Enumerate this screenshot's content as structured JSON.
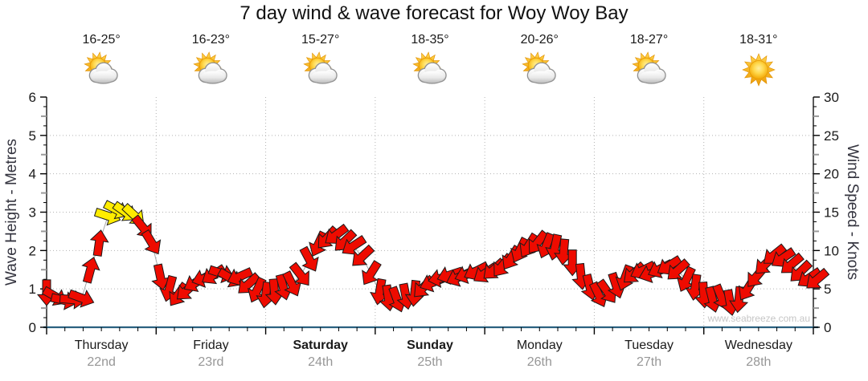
{
  "title": "7 day wind & wave forecast for Woy Woy Bay",
  "watermark": "www.seabreeze.com.au",
  "axes": {
    "left_label": "Wave Height - Metres",
    "right_label": "Wind Speed - Knots"
  },
  "days": [
    {
      "name": "Thursday",
      "date": "22nd",
      "temp": "16-25°",
      "icon": "partly-cloudy",
      "bold": false
    },
    {
      "name": "Friday",
      "date": "23rd",
      "temp": "16-23°",
      "icon": "partly-cloudy",
      "bold": false
    },
    {
      "name": "Saturday",
      "date": "24th",
      "temp": "15-27°",
      "icon": "partly-cloudy",
      "bold": true
    },
    {
      "name": "Sunday",
      "date": "25th",
      "temp": "18-35°",
      "icon": "partly-cloudy",
      "bold": true
    },
    {
      "name": "Monday",
      "date": "26th",
      "temp": "20-26°",
      "icon": "partly-cloudy",
      "bold": false
    },
    {
      "name": "Tuesday",
      "date": "27th",
      "temp": "18-27°",
      "icon": "partly-cloudy",
      "bold": false
    },
    {
      "name": "Wednesday",
      "date": "28th",
      "temp": "18-31°",
      "icon": "sunny",
      "bold": false
    }
  ],
  "colors": {
    "arrow_red": "#ee0b00",
    "arrow_yellow": "#ffec00",
    "arrow_outline": "#1a1a1a",
    "connector": "#a6a6a6",
    "grid": "#b3b3b3",
    "axis_line": "#000000",
    "x_axis_line": "#2b617f",
    "tick_label": "#1a1a1a",
    "half_tick": "#9a9a9a"
  },
  "chart_data": {
    "type": "scatter",
    "subtype": "wind-arrow-timeseries",
    "title": "7 day wind & wave forecast for Woy Woy Bay",
    "x_axis": {
      "label": "",
      "range_days": [
        0,
        7
      ],
      "day_names": [
        "Thursday",
        "Friday",
        "Saturday",
        "Sunday",
        "Monday",
        "Tuesday",
        "Wednesday"
      ],
      "day_dates": [
        "22nd",
        "23rd",
        "24th",
        "25th",
        "26th",
        "27th",
        "28th"
      ],
      "minor_ticks_per_day": 6
    },
    "y_left": {
      "label": "Wave Height - Metres",
      "range": [
        0,
        6
      ],
      "major_ticks": [
        0,
        1,
        2,
        3,
        4,
        5,
        6
      ]
    },
    "y_right": {
      "label": "Wind Speed - Knots",
      "range": [
        0,
        30
      ],
      "major_ticks": [
        0,
        5,
        10,
        15,
        20,
        25,
        30
      ]
    },
    "grid": {
      "horizontal_at_metres": [
        1,
        2,
        3,
        4,
        5
      ],
      "vertical_at_day_boundaries": [
        1,
        2,
        3,
        4,
        5,
        6
      ],
      "style": "dotted"
    },
    "legend": "none",
    "wind_arrows": {
      "x_unit": "days from Thursday 00:00",
      "value_unit": "knots",
      "direction_unit": "degrees arrow points, 0 = up, clockwise",
      "yellow_threshold_knots": 14,
      "points": [
        [
          0.0,
          4.5,
          180
        ],
        [
          0.08,
          4.0,
          120
        ],
        [
          0.16,
          3.5,
          103
        ],
        [
          0.24,
          3.6,
          95
        ],
        [
          0.32,
          3.8,
          110
        ],
        [
          0.4,
          7.5,
          15
        ],
        [
          0.48,
          11.0,
          8
        ],
        [
          0.56,
          14.5,
          108
        ],
        [
          0.64,
          15.3,
          117
        ],
        [
          0.72,
          15.0,
          125
        ],
        [
          0.8,
          14.6,
          133
        ],
        [
          0.88,
          13.0,
          141
        ],
        [
          0.96,
          11.0,
          149
        ],
        [
          1.04,
          6.5,
          168
        ],
        [
          1.12,
          5.0,
          195
        ],
        [
          1.2,
          4.2,
          215
        ],
        [
          1.28,
          4.8,
          228
        ],
        [
          1.36,
          5.8,
          241
        ],
        [
          1.44,
          6.4,
          252
        ],
        [
          1.52,
          6.8,
          237
        ],
        [
          1.6,
          7.0,
          108
        ],
        [
          1.68,
          6.4,
          120
        ],
        [
          1.76,
          6.6,
          246
        ],
        [
          1.84,
          5.6,
          228
        ],
        [
          1.92,
          4.8,
          205
        ],
        [
          2.0,
          4.2,
          188
        ],
        [
          2.08,
          4.6,
          175
        ],
        [
          2.16,
          5.2,
          165
        ],
        [
          2.24,
          5.6,
          154
        ],
        [
          2.32,
          6.8,
          142
        ],
        [
          2.4,
          8.8,
          152
        ],
        [
          2.48,
          10.8,
          205
        ],
        [
          2.56,
          11.6,
          222
        ],
        [
          2.64,
          12.0,
          233
        ],
        [
          2.72,
          11.2,
          226
        ],
        [
          2.8,
          10.6,
          237
        ],
        [
          2.88,
          9.2,
          227
        ],
        [
          2.96,
          7.0,
          212
        ],
        [
          3.04,
          4.6,
          190
        ],
        [
          3.12,
          3.8,
          172
        ],
        [
          3.2,
          3.6,
          160
        ],
        [
          3.28,
          4.0,
          169
        ],
        [
          3.36,
          4.4,
          186
        ],
        [
          3.44,
          5.2,
          224
        ],
        [
          3.52,
          5.8,
          248
        ],
        [
          3.6,
          6.4,
          258
        ],
        [
          3.68,
          6.8,
          252
        ],
        [
          3.76,
          6.5,
          246
        ],
        [
          3.84,
          6.9,
          250
        ],
        [
          3.92,
          7.3,
          243
        ],
        [
          4.0,
          7.0,
          236
        ],
        [
          4.08,
          7.5,
          228
        ],
        [
          4.16,
          8.0,
          218
        ],
        [
          4.24,
          9.0,
          212
        ],
        [
          4.32,
          10.0,
          206
        ],
        [
          4.4,
          10.6,
          212
        ],
        [
          4.48,
          11.0,
          218
        ],
        [
          4.56,
          10.6,
          202
        ],
        [
          4.64,
          10.4,
          192
        ],
        [
          4.72,
          9.8,
          185
        ],
        [
          4.8,
          8.4,
          180
        ],
        [
          4.88,
          6.6,
          174
        ],
        [
          4.96,
          5.2,
          166
        ],
        [
          5.04,
          4.2,
          155
        ],
        [
          5.12,
          4.6,
          145
        ],
        [
          5.2,
          5.4,
          162
        ],
        [
          5.28,
          6.4,
          200
        ],
        [
          5.36,
          7.0,
          228
        ],
        [
          5.44,
          7.4,
          244
        ],
        [
          5.52,
          7.0,
          250
        ],
        [
          5.6,
          7.6,
          244
        ],
        [
          5.68,
          8.0,
          238
        ],
        [
          5.76,
          7.4,
          228
        ],
        [
          5.84,
          6.2,
          205
        ],
        [
          5.92,
          5.2,
          188
        ],
        [
          6.0,
          4.2,
          176
        ],
        [
          6.08,
          3.6,
          166
        ],
        [
          6.16,
          3.9,
          158
        ],
        [
          6.24,
          3.2,
          170
        ],
        [
          6.32,
          3.6,
          186
        ],
        [
          6.4,
          5.0,
          212
        ],
        [
          6.48,
          6.6,
          220
        ],
        [
          6.56,
          8.2,
          226
        ],
        [
          6.64,
          9.4,
          231
        ],
        [
          6.72,
          9.0,
          236
        ],
        [
          6.8,
          8.2,
          230
        ],
        [
          6.88,
          7.2,
          226
        ],
        [
          6.96,
          6.4,
          236
        ],
        [
          7.03,
          6.2,
          230
        ]
      ]
    }
  }
}
